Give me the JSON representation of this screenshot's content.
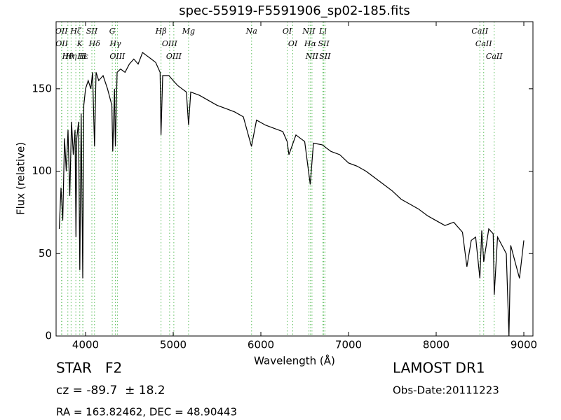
{
  "chart_data": {
    "type": "line",
    "title": "spec-55919-F5591906_sp02-185.fits",
    "x_label": "Wavelength (Å)",
    "y_label": "Flux (relative)",
    "xlim": [
      3664,
      9104
    ],
    "ylim": [
      0,
      190.7
    ],
    "xticks": [
      4000,
      5000,
      6000,
      7000,
      8000,
      9000
    ],
    "yticks": [
      0,
      50,
      100,
      150
    ],
    "color": "#000000",
    "annotation_color": "#5fbf5f",
    "x": [
      3700,
      3720,
      3740,
      3760,
      3780,
      3800,
      3820,
      3840,
      3860,
      3880,
      3890,
      3900,
      3920,
      3934,
      3950,
      3968,
      3980,
      4000,
      4030,
      4060,
      4080,
      4102,
      4120,
      4150,
      4200,
      4250,
      4300,
      4310,
      4330,
      4340,
      4360,
      4400,
      4450,
      4500,
      4550,
      4600,
      4650,
      4700,
      4750,
      4800,
      4850,
      4861,
      4880,
      4950,
      5000,
      5050,
      5100,
      5150,
      5175,
      5200,
      5300,
      5400,
      5500,
      5600,
      5700,
      5800,
      5893,
      5950,
      6050,
      6150,
      6250,
      6300,
      6320,
      6400,
      6500,
      6563,
      6600,
      6700,
      6800,
      6900,
      7000,
      7100,
      7200,
      7300,
      7400,
      7500,
      7600,
      7700,
      7800,
      7900,
      8000,
      8100,
      8200,
      8300,
      8350,
      8400,
      8450,
      8498,
      8520,
      8542,
      8600,
      8650,
      8662,
      8700,
      8750,
      8800,
      8830,
      8850,
      8900,
      8950,
      9000
    ],
    "values": [
      65,
      90,
      70,
      120,
      100,
      125,
      85,
      130,
      110,
      125,
      60,
      120,
      130,
      40,
      135,
      35,
      140,
      150,
      155,
      150,
      160,
      115,
      160,
      155,
      158,
      150,
      140,
      112,
      150,
      115,
      160,
      162,
      160,
      165,
      168,
      165,
      172,
      170,
      168,
      166,
      160,
      122,
      158,
      158,
      155,
      152,
      150,
      148,
      128,
      148,
      146,
      143,
      140,
      138,
      136,
      133,
      115,
      131,
      128,
      126,
      124,
      118,
      110,
      122,
      118,
      92,
      117,
      116,
      112,
      110,
      105,
      103,
      100,
      96,
      92,
      88,
      83,
      80,
      77,
      73,
      70,
      67,
      69,
      63,
      42,
      58,
      60,
      35,
      64,
      45,
      65,
      62,
      25,
      60,
      55,
      50,
      0,
      55,
      45,
      35,
      58
    ],
    "annotations": [
      {
        "text": "OII",
        "x": 3726
      },
      {
        "text": "OII",
        "x": 3729
      },
      {
        "text": "Hθ",
        "x": 3798
      },
      {
        "text": "Hη",
        "x": 3835
      },
      {
        "text": "Hζ",
        "x": 3889
      },
      {
        "text": "K",
        "x": 3934
      },
      {
        "text": "H",
        "x": 3968
      },
      {
        "text": "Hε",
        "x": 3970
      },
      {
        "text": "SII",
        "x": 4072
      },
      {
        "text": "Hδ",
        "x": 4102
      },
      {
        "text": "G",
        "x": 4305
      },
      {
        "text": "Hγ",
        "x": 4340
      },
      {
        "text": "OIII",
        "x": 4363
      },
      {
        "text": "Hβ",
        "x": 4861
      },
      {
        "text": "OIII",
        "x": 4959
      },
      {
        "text": "OIII",
        "x": 5007
      },
      {
        "text": "Mg",
        "x": 5175
      },
      {
        "text": "Na",
        "x": 5894
      },
      {
        "text": "OI",
        "x": 6300
      },
      {
        "text": "OI",
        "x": 6364
      },
      {
        "text": "NII",
        "x": 6548
      },
      {
        "text": "Hα",
        "x": 6563
      },
      {
        "text": "NII",
        "x": 6583
      },
      {
        "text": "Li",
        "x": 6708
      },
      {
        "text": "SII",
        "x": 6717
      },
      {
        "text": "SII",
        "x": 6731
      },
      {
        "text": "CaII",
        "x": 8498
      },
      {
        "text": "CaII",
        "x": 8542
      },
      {
        "text": "CaII",
        "x": 8662
      }
    ],
    "footer": {
      "class": "STAR   F2",
      "survey": "LAMOST DR1",
      "cz": "cz = -89.7  ± 18.2",
      "date": "Obs-Date:20111223",
      "coords": "RA = 163.82462, DEC = 48.90443"
    }
  }
}
